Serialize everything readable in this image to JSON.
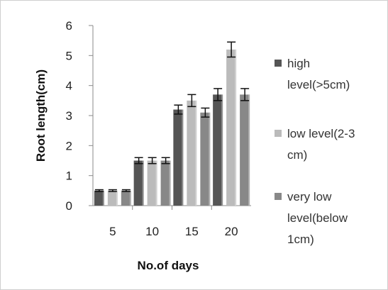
{
  "chart_data": {
    "type": "bar",
    "categories": [
      "5",
      "10",
      "15",
      "20"
    ],
    "series": [
      {
        "name": "high level(>5cm)",
        "color": "#555555",
        "values": [
          0.5,
          1.5,
          3.2,
          3.7
        ],
        "errors": [
          0.03,
          0.1,
          0.15,
          0.2
        ]
      },
      {
        "name": "low level(2-3 cm)",
        "color": "#bbbbbb",
        "values": [
          0.5,
          1.5,
          3.5,
          5.2
        ],
        "errors": [
          0.03,
          0.1,
          0.2,
          0.25
        ]
      },
      {
        "name": "very low level(below 1cm)",
        "color": "#888888",
        "values": [
          0.5,
          1.5,
          3.1,
          3.7
        ],
        "errors": [
          0.03,
          0.1,
          0.15,
          0.2
        ]
      }
    ],
    "xlabel": "No.of days",
    "ylabel": "Root length(cm)",
    "ylim": [
      0,
      6
    ],
    "yticks": [
      "0",
      "1",
      "2",
      "3",
      "4",
      "5",
      "6"
    ],
    "grid": false,
    "error_bars": true,
    "legend_position": "right",
    "legend_lines": [
      [
        "high",
        "level(>5cm)"
      ],
      [
        "low level(2-3",
        "cm)"
      ],
      [
        "very low",
        "level(below",
        "1cm)"
      ]
    ]
  }
}
